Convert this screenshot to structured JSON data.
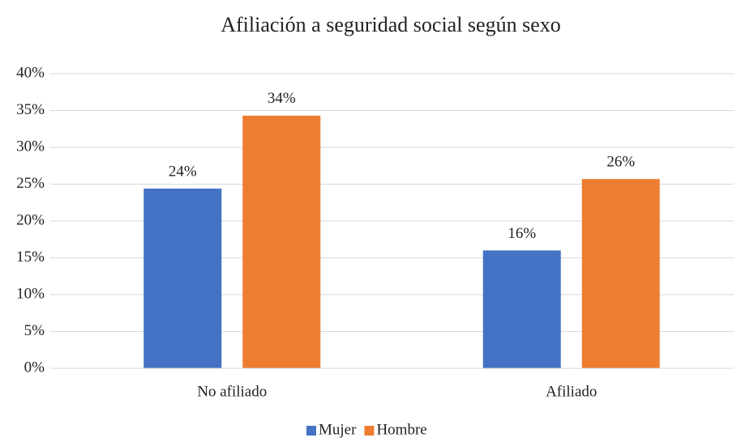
{
  "chart_data": {
    "type": "bar",
    "title": "Afiliación a seguridad social según sexo",
    "categories": [
      "No afiliado",
      "Afiliado"
    ],
    "series": [
      {
        "name": "Mujer",
        "color": "#4472c4",
        "values": [
          24.4,
          16.0
        ],
        "value_labels": [
          "24%",
          "16%"
        ]
      },
      {
        "name": "Hombre",
        "color": "#ed7d31",
        "values": [
          34.3,
          25.7
        ],
        "value_labels": [
          "34%",
          "26%"
        ]
      }
    ],
    "ylim": [
      0,
      40
    ],
    "yticks": [
      {
        "value": 0,
        "label": "0%"
      },
      {
        "value": 5,
        "label": "5%"
      },
      {
        "value": 10,
        "label": "10%"
      },
      {
        "value": 15,
        "label": "15%"
      },
      {
        "value": 20,
        "label": "20%"
      },
      {
        "value": 25,
        "label": "25%"
      },
      {
        "value": 30,
        "label": "30%"
      },
      {
        "value": 35,
        "label": "35%"
      },
      {
        "value": 40,
        "label": "40%"
      }
    ],
    "grid": true,
    "legend": "bottom"
  }
}
